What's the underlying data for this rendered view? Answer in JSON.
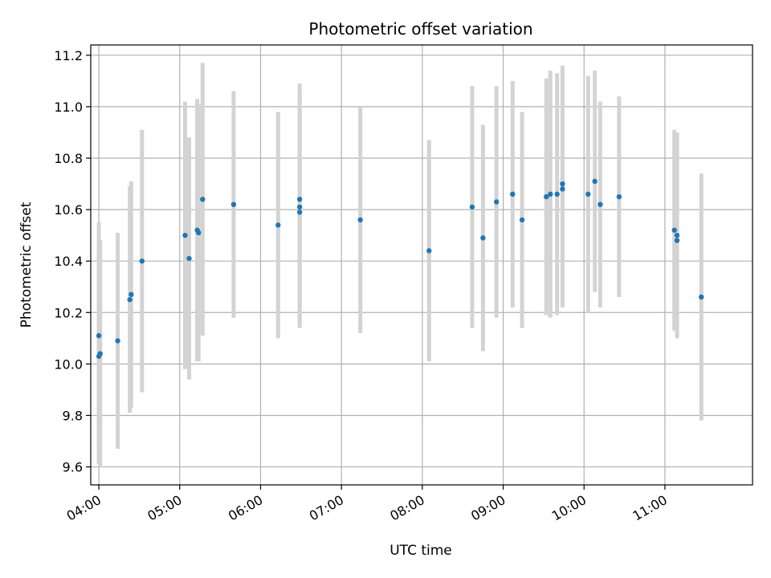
{
  "chart_data": {
    "type": "scatter",
    "title": "Photometric offset variation",
    "xlabel": "UTC time",
    "ylabel": "Photometric offset",
    "x_tick_labels": [
      "04:00",
      "05:00",
      "06:00",
      "07:00",
      "08:00",
      "09:00",
      "10:00",
      "11:00"
    ],
    "y_tick_labels": [
      "9.6",
      "9.8",
      "10.0",
      "10.2",
      "10.4",
      "10.6",
      "10.8",
      "11.0",
      "11.2"
    ],
    "y_ticks": [
      9.6,
      9.8,
      10.0,
      10.2,
      10.4,
      10.6,
      10.8,
      11.0,
      11.2
    ],
    "xlim": [
      "03:54",
      "12:05"
    ],
    "ylim": [
      9.53,
      11.24
    ],
    "grid": true,
    "colors": {
      "point": "#1f77b4",
      "errorbar": "#d3d3d3",
      "grid": "#b0b0b0"
    },
    "series": [
      {
        "points": [
          {
            "x": "04:00",
            "y": 10.11,
            "err": 0.44
          },
          {
            "x": "04:01",
            "y": 10.04,
            "err": 0.44
          },
          {
            "x": "04:00",
            "y": 10.03,
            "err": 0.42
          },
          {
            "x": "04:14",
            "y": 10.09,
            "err": 0.42
          },
          {
            "x": "04:23",
            "y": 10.25,
            "err": 0.44
          },
          {
            "x": "04:24",
            "y": 10.27,
            "err": 0.44
          },
          {
            "x": "04:32",
            "y": 10.4,
            "err": 0.51
          },
          {
            "x": "05:04",
            "y": 10.5,
            "err": 0.52
          },
          {
            "x": "05:07",
            "y": 10.41,
            "err": 0.47
          },
          {
            "x": "05:13",
            "y": 10.52,
            "err": 0.51
          },
          {
            "x": "05:14",
            "y": 10.51,
            "err": 0.5
          },
          {
            "x": "05:17",
            "y": 10.64,
            "err": 0.53
          },
          {
            "x": "05:40",
            "y": 10.62,
            "err": 0.44
          },
          {
            "x": "06:13",
            "y": 10.54,
            "err": 0.44
          },
          {
            "x": "06:29",
            "y": 10.64,
            "err": 0.45
          },
          {
            "x": "06:29",
            "y": 10.61,
            "err": 0.45
          },
          {
            "x": "06:29",
            "y": 10.59,
            "err": 0.45
          },
          {
            "x": "07:14",
            "y": 10.56,
            "err": 0.44
          },
          {
            "x": "08:05",
            "y": 10.44,
            "err": 0.43
          },
          {
            "x": "08:37",
            "y": 10.61,
            "err": 0.47
          },
          {
            "x": "08:45",
            "y": 10.49,
            "err": 0.44
          },
          {
            "x": "08:55",
            "y": 10.63,
            "err": 0.45
          },
          {
            "x": "09:07",
            "y": 10.66,
            "err": 0.44
          },
          {
            "x": "09:14",
            "y": 10.56,
            "err": 0.42
          },
          {
            "x": "09:32",
            "y": 10.65,
            "err": 0.46
          },
          {
            "x": "09:35",
            "y": 10.66,
            "err": 0.48
          },
          {
            "x": "09:40",
            "y": 10.66,
            "err": 0.47
          },
          {
            "x": "09:44",
            "y": 10.7,
            "err": 0.46
          },
          {
            "x": "09:44",
            "y": 10.68,
            "err": 0.46
          },
          {
            "x": "10:03",
            "y": 10.66,
            "err": 0.46
          },
          {
            "x": "10:08",
            "y": 10.71,
            "err": 0.43
          },
          {
            "x": "10:12",
            "y": 10.62,
            "err": 0.4
          },
          {
            "x": "10:26",
            "y": 10.65,
            "err": 0.39
          },
          {
            "x": "11:07",
            "y": 10.52,
            "err": 0.39
          },
          {
            "x": "11:09",
            "y": 10.5,
            "err": 0.4
          },
          {
            "x": "11:09",
            "y": 10.48,
            "err": 0.38
          },
          {
            "x": "11:27",
            "y": 10.26,
            "err": 0.48
          }
        ]
      }
    ]
  }
}
